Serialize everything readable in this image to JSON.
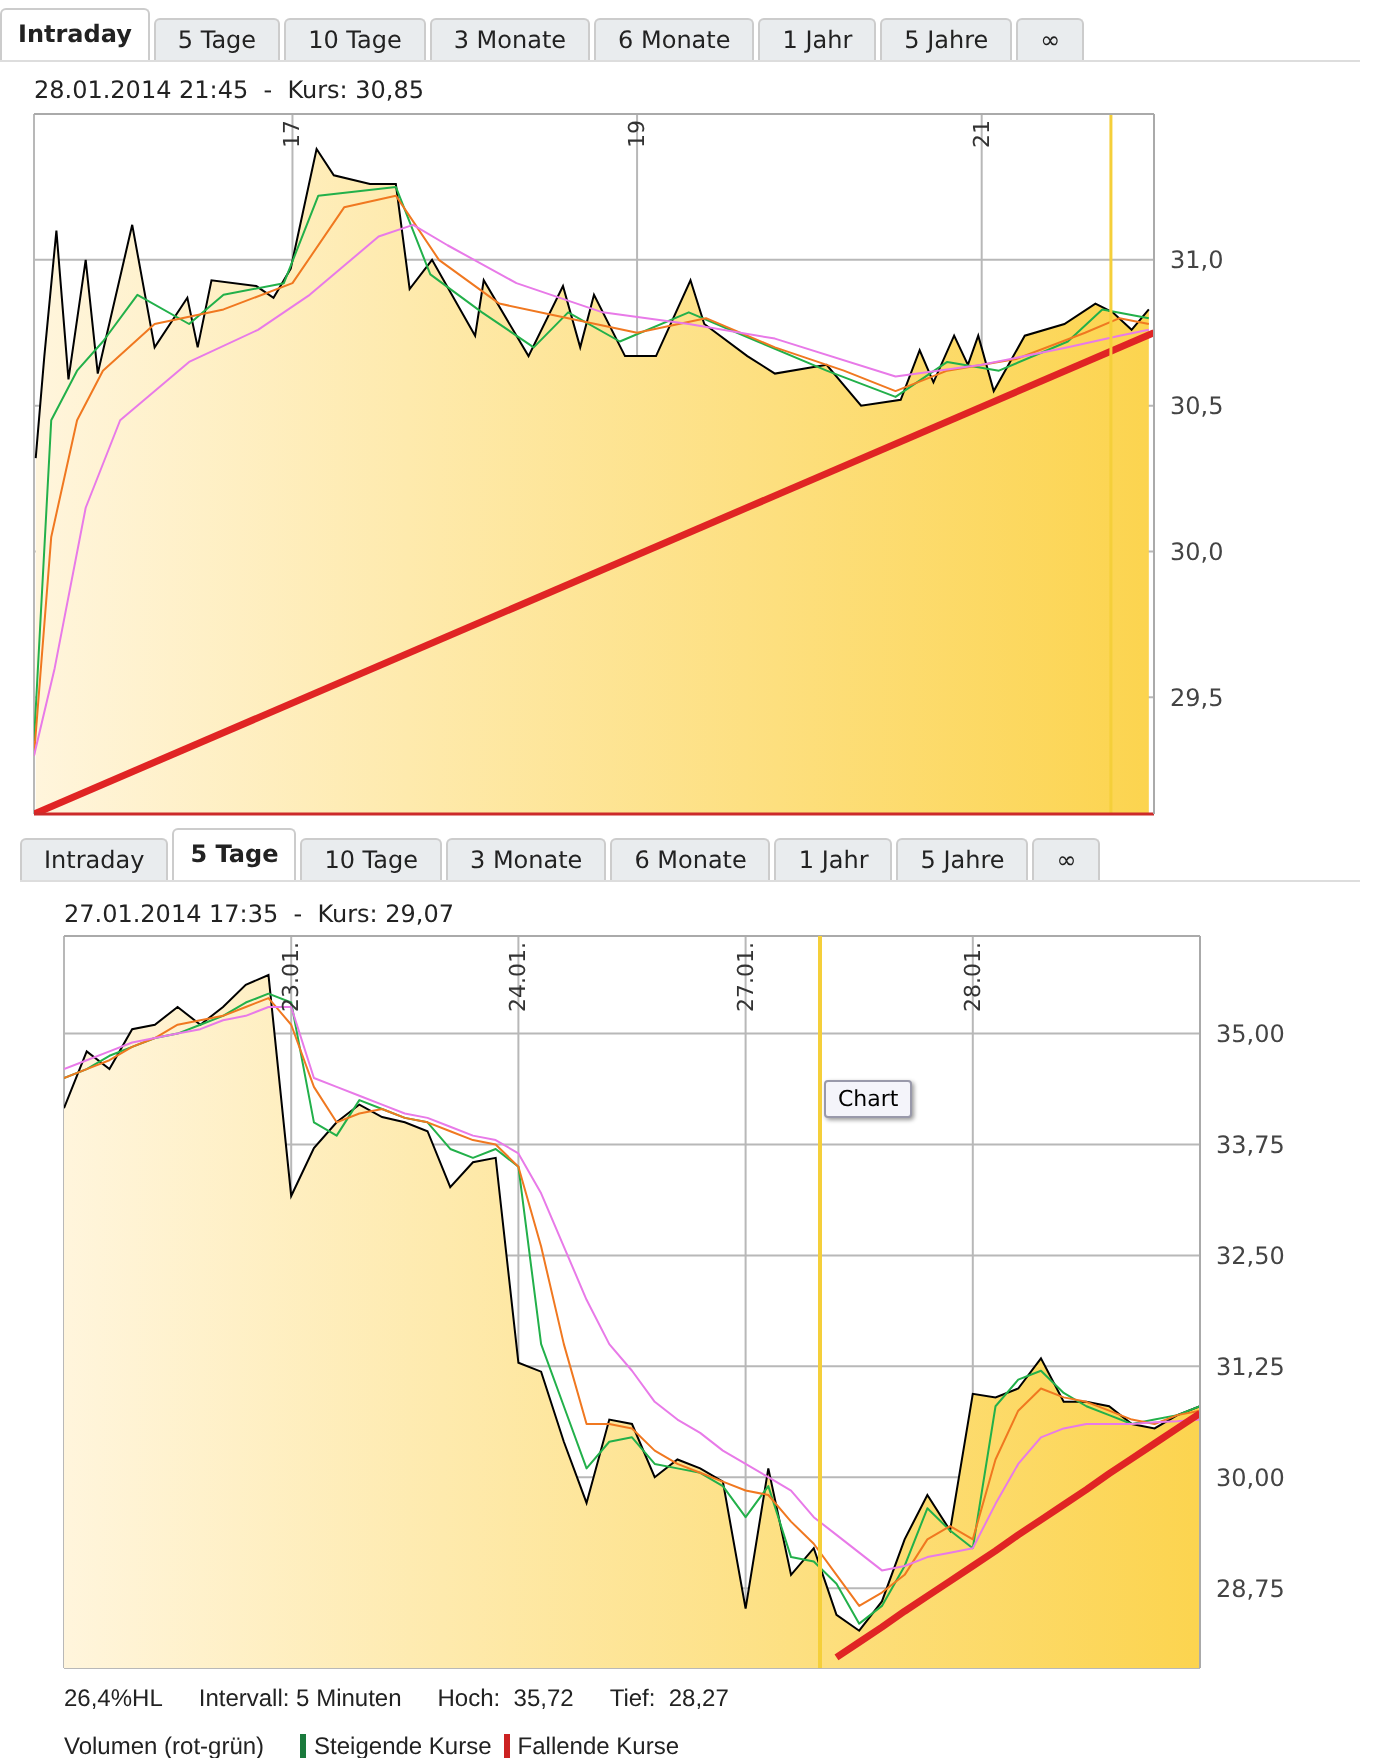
{
  "chart_data": [
    {
      "type": "line",
      "title": "28.01.2014 21:45  -  Kurs: 30,85",
      "annotations": [
        "Intraday",
        "5 Tage",
        "10 Tage",
        "3 Monate",
        "6 Monate",
        "1 Jahr",
        "5 Jahre",
        "∞"
      ],
      "xlim": [
        15.5,
        22.0
      ],
      "xticks": [
        17,
        19,
        21
      ],
      "ylim": [
        29.1,
        31.5
      ],
      "yticks": [
        {
          "value": 29.5,
          "label": "29,5"
        },
        {
          "value": 30,
          "label": "30,0"
        },
        {
          "value": 30.5,
          "label": "30,5"
        },
        {
          "value": 31,
          "label": "31,0"
        }
      ],
      "grid": true,
      "ref_lines": [
        {
          "axis": "x",
          "value": 21.75,
          "color": "#f5cf3a"
        },
        {
          "axis": "y",
          "value": 29.1,
          "color": "#cc2a2a"
        }
      ],
      "series": [
        {
          "type": "area",
          "color": "#000000",
          "x": [
            15.51,
            15.56,
            15.63,
            15.7,
            15.8,
            15.87,
            16.07,
            16.2,
            16.39,
            16.45,
            16.53,
            16.79,
            16.89,
            16.99,
            17.14,
            17.24,
            17.45,
            17.6,
            17.68,
            17.81,
            18.06,
            18.11,
            18.37,
            18.57,
            18.67,
            18.75,
            18.93,
            19.11,
            19.31,
            19.39,
            19.64,
            19.8,
            20.1,
            20.3,
            20.53,
            20.64,
            20.72,
            20.84,
            20.92,
            20.98,
            21.07,
            21.25,
            21.48,
            21.66,
            21.76,
            21.87,
            21.97
          ],
          "values": [
            30.32,
            30.67,
            31.1,
            30.59,
            31.0,
            30.61,
            31.12,
            30.7,
            30.87,
            30.7,
            30.93,
            30.91,
            30.87,
            30.97,
            31.38,
            31.29,
            31.26,
            31.26,
            30.9,
            31.0,
            30.74,
            30.93,
            30.67,
            30.91,
            30.7,
            30.88,
            30.67,
            30.67,
            30.93,
            30.78,
            30.67,
            30.61,
            30.64,
            30.5,
            30.52,
            30.69,
            30.58,
            30.74,
            30.64,
            30.74,
            30.55,
            30.74,
            30.78,
            30.85,
            30.82,
            30.76,
            30.83
          ]
        },
        {
          "color": "#22b04a",
          "x": [
            15.5,
            15.6,
            15.75,
            15.9,
            16.1,
            16.4,
            16.6,
            16.95,
            17.15,
            17.6,
            17.8,
            18.1,
            18.4,
            18.6,
            18.9,
            19.3,
            19.7,
            20.1,
            20.5,
            20.8,
            21.1,
            21.5,
            21.7,
            21.97
          ],
          "values": [
            29.35,
            30.45,
            30.62,
            30.72,
            30.88,
            30.78,
            30.88,
            30.92,
            31.22,
            31.25,
            30.95,
            30.82,
            30.7,
            30.82,
            30.72,
            30.82,
            30.72,
            30.62,
            30.53,
            30.65,
            30.62,
            30.72,
            30.83,
            30.8
          ]
        },
        {
          "color": "#f07820",
          "x": [
            15.5,
            15.6,
            15.75,
            15.9,
            16.2,
            16.6,
            17.0,
            17.3,
            17.6,
            17.85,
            18.2,
            18.6,
            19.0,
            19.4,
            19.8,
            20.2,
            20.5,
            20.8,
            21.2,
            21.6,
            21.8,
            21.97
          ],
          "values": [
            29.3,
            30.05,
            30.45,
            30.62,
            30.78,
            30.83,
            30.92,
            31.18,
            31.22,
            31.0,
            30.85,
            30.8,
            30.75,
            30.8,
            30.7,
            30.62,
            30.55,
            30.62,
            30.66,
            30.75,
            30.8,
            30.78
          ]
        },
        {
          "color": "#e87ae8",
          "x": [
            15.5,
            15.62,
            15.8,
            16.0,
            16.4,
            16.8,
            17.1,
            17.5,
            17.7,
            17.9,
            18.3,
            18.8,
            19.3,
            19.8,
            20.5,
            21.0,
            21.5,
            21.8,
            21.97
          ],
          "values": [
            29.3,
            29.6,
            30.15,
            30.45,
            30.65,
            30.76,
            30.88,
            31.08,
            31.12,
            31.05,
            30.92,
            30.82,
            30.78,
            30.73,
            30.6,
            30.64,
            30.7,
            30.74,
            30.76
          ]
        },
        {
          "color": "#e02424",
          "x": [
            15.5,
            22.0
          ],
          "values": [
            29.1,
            30.75
          ]
        }
      ]
    },
    {
      "type": "line",
      "title": "27.01.2014 17:35  -  Kurs: 29,07",
      "annotations": [
        "Intraday",
        "5 Tage",
        "10 Tage",
        "3 Monate",
        "6 Monate",
        "1 Jahr",
        "5 Jahre",
        "∞",
        "Chart",
        "26,4%HL",
        "Intervall: 5 Minuten",
        "Hoch:  35,72",
        "Tief:  28,27",
        "Volumen (rot-grün)",
        "Steigende Kurse",
        "Fallende Kurse"
      ],
      "categories": [
        null,
        null,
        null,
        null,
        null,
        null,
        null,
        null,
        null,
        null,
        "23.01.",
        null,
        null,
        null,
        null,
        null,
        null,
        null,
        null,
        null,
        "24.01.",
        null,
        null,
        null,
        null,
        null,
        null,
        null,
        null,
        null,
        "27.01.",
        null,
        null,
        null,
        null,
        null,
        null,
        null,
        null,
        null,
        "28.01.",
        null,
        null,
        null,
        null,
        null,
        null,
        null,
        null,
        null,
        null
      ],
      "ylim": [
        27.85,
        36.1
      ],
      "yticks": [
        {
          "value": 28.75,
          "label": "28,75"
        },
        {
          "value": 30,
          "label": "30,00"
        },
        {
          "value": 31.25,
          "label": "31,25"
        },
        {
          "value": 32.5,
          "label": "32,50"
        },
        {
          "value": 33.75,
          "label": "33,75"
        },
        {
          "value": 35,
          "label": "35,00"
        }
      ],
      "grid": true,
      "series": [
        {
          "type": "area",
          "color": "#000000",
          "values": [
            34.16,
            34.8,
            34.6,
            35.05,
            35.1,
            35.3,
            35.1,
            35.3,
            35.55,
            35.66,
            33.17,
            33.71,
            34.0,
            34.2,
            34.06,
            34.0,
            33.9,
            33.27,
            33.55,
            33.6,
            31.29,
            31.19,
            30.4,
            29.71,
            30.65,
            30.6,
            30.0,
            30.2,
            30.1,
            29.95,
            28.52,
            30.1,
            28.9,
            29.2,
            28.45,
            28.27,
            28.6,
            29.3,
            29.8,
            29.4,
            30.94,
            30.9,
            31.0,
            31.34,
            30.85,
            30.85,
            30.8,
            30.6,
            30.55,
            30.7,
            30.8
          ]
        },
        {
          "color": "#22b04a",
          "values": [
            34.5,
            34.6,
            34.75,
            34.85,
            34.95,
            35.0,
            35.1,
            35.2,
            35.35,
            35.45,
            35.35,
            34.0,
            33.85,
            34.25,
            34.15,
            34.05,
            34.0,
            33.7,
            33.6,
            33.7,
            33.5,
            31.5,
            30.8,
            30.1,
            30.4,
            30.45,
            30.15,
            30.1,
            30.05,
            29.9,
            29.55,
            29.9,
            29.1,
            29.05,
            28.8,
            28.35,
            28.55,
            29.0,
            29.65,
            29.4,
            29.2,
            30.8,
            31.1,
            31.2,
            30.95,
            30.8,
            30.7,
            30.6,
            30.65,
            30.7,
            30.8
          ]
        },
        {
          "color": "#f07820",
          "values": [
            34.5,
            34.6,
            34.7,
            34.85,
            34.95,
            35.1,
            35.15,
            35.2,
            35.3,
            35.4,
            35.1,
            34.4,
            34.0,
            34.1,
            34.15,
            34.05,
            34.0,
            33.9,
            33.8,
            33.75,
            33.5,
            32.6,
            31.5,
            30.6,
            30.6,
            30.55,
            30.3,
            30.15,
            30.05,
            29.95,
            29.85,
            29.8,
            29.5,
            29.25,
            28.9,
            28.55,
            28.7,
            28.9,
            29.3,
            29.45,
            29.3,
            30.2,
            30.75,
            31.0,
            30.9,
            30.85,
            30.75,
            30.65,
            30.6,
            30.7,
            30.75
          ]
        },
        {
          "color": "#e87ae8",
          "values": [
            34.6,
            34.7,
            34.8,
            34.9,
            34.95,
            35.0,
            35.05,
            35.15,
            35.2,
            35.3,
            35.3,
            34.5,
            34.4,
            34.3,
            34.2,
            34.1,
            34.05,
            33.95,
            33.85,
            33.8,
            33.65,
            33.2,
            32.6,
            32.0,
            31.5,
            31.2,
            30.85,
            30.65,
            30.5,
            30.3,
            30.15,
            30.0,
            29.85,
            29.55,
            29.35,
            29.15,
            28.95,
            29.0,
            29.1,
            29.15,
            29.2,
            29.7,
            30.15,
            30.45,
            30.55,
            30.6,
            30.6,
            30.6,
            30.62,
            30.63,
            30.65
          ]
        },
        {
          "color": "#e02424",
          "values": [
            null,
            null,
            null,
            null,
            null,
            null,
            null,
            null,
            null,
            null,
            null,
            null,
            null,
            null,
            null,
            null,
            null,
            null,
            null,
            null,
            null,
            null,
            null,
            null,
            null,
            null,
            null,
            null,
            null,
            null,
            null,
            null,
            null,
            null,
            27.97,
            28.14,
            28.31,
            28.49,
            28.66,
            28.83,
            29.0,
            29.17,
            29.35,
            29.52,
            29.69,
            29.86,
            30.04,
            30.21,
            30.38,
            30.55,
            30.72
          ]
        }
      ]
    }
  ]
}
